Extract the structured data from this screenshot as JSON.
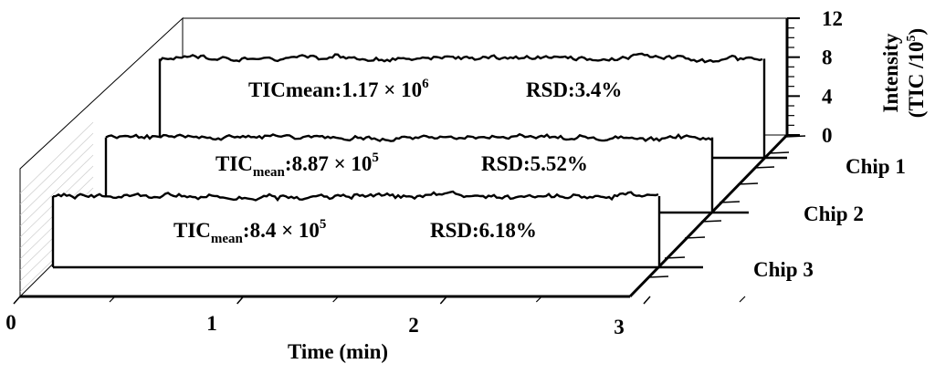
{
  "chart_data": {
    "type": "line",
    "subtype": "3d-waterfall",
    "title": "",
    "xlabel": "Time (min)",
    "ylabel": "Intensity (TIC /10^5)",
    "ylabel_line1": "Intensity",
    "ylabel_line2": "(TIC /10",
    "ylabel_line2_sup": "5",
    "ylabel_line2_end": ")",
    "xlim": [
      0,
      3
    ],
    "ylim": [
      0,
      12
    ],
    "x_ticks": [
      "0",
      "1",
      "2",
      "3"
    ],
    "y_ticks": [
      "0",
      "4",
      "8",
      "12"
    ],
    "grid": false,
    "series": [
      {
        "name": "Chip 1",
        "level": 11.7,
        "tic_label": "TICmean:1.17 × 10",
        "tic_sup": "6",
        "rsd_label": "RSD:3.4%"
      },
      {
        "name": "Chip 2",
        "level": 8.87,
        "tic_label_prefix": "TIC",
        "tic_label_sub": "mean",
        "tic_label_main": ":8.87 × 10",
        "tic_sup": "5",
        "rsd_label": "RSD:5.52%"
      },
      {
        "name": "Chip 3",
        "level": 8.4,
        "tic_label_prefix": "TIC",
        "tic_label_sub": "mean",
        "tic_label_main": ":8.4 × 10",
        "tic_sup": "5",
        "rsd_label": "RSD:6.18%"
      }
    ]
  }
}
